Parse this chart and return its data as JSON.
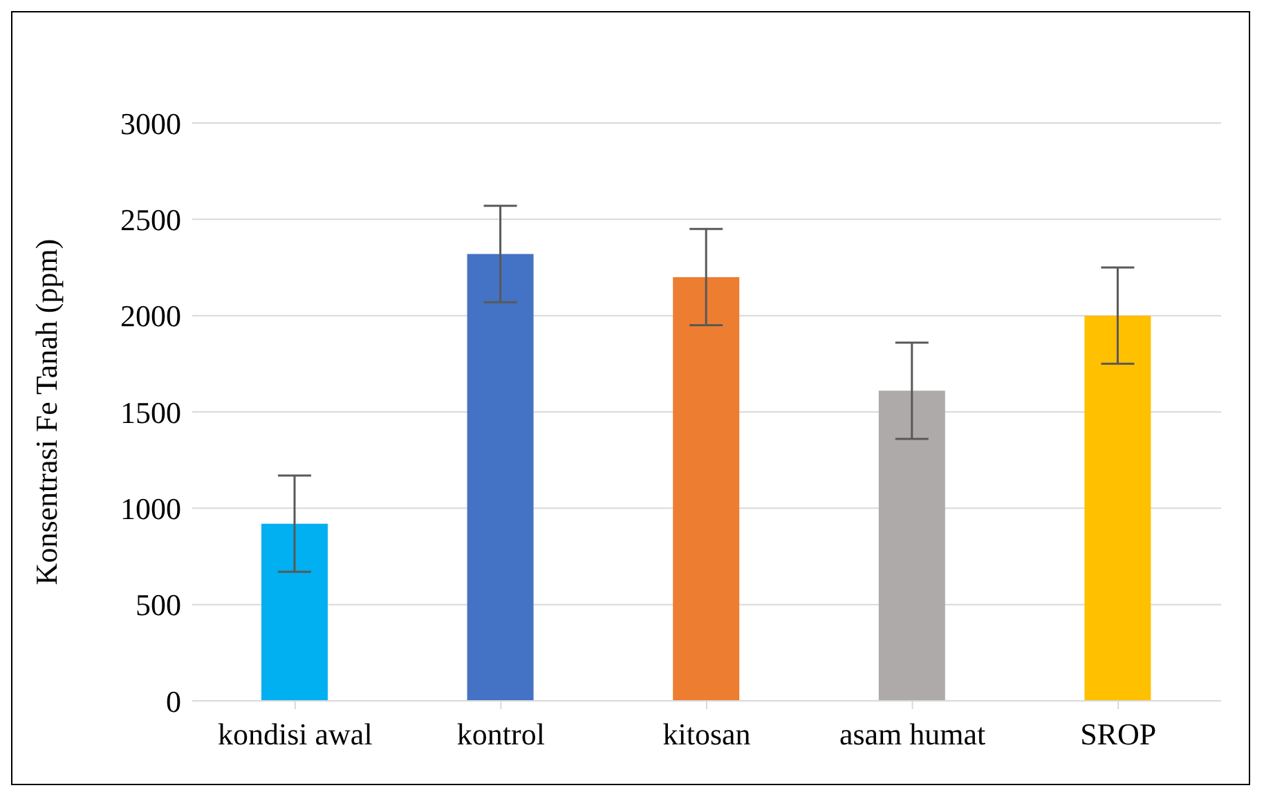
{
  "chart_data": {
    "type": "bar",
    "ylabel": "Konsentrasi Fe Tanah (ppm)",
    "categories": [
      "kondisi awal",
      "kontrol",
      "kitosan",
      "asam humat",
      "SROP"
    ],
    "values": [
      920,
      2320,
      2200,
      1610,
      2000
    ],
    "colors": [
      "#00b0f0",
      "#4472c4",
      "#ed7d31",
      "#aeaaaa",
      "#ffc000"
    ],
    "errors": [
      250,
      250,
      250,
      250,
      250
    ],
    "ylim": [
      0,
      3000
    ],
    "yticks": [
      0,
      500,
      1000,
      1500,
      2000,
      2500,
      3000
    ],
    "grid": "y"
  }
}
